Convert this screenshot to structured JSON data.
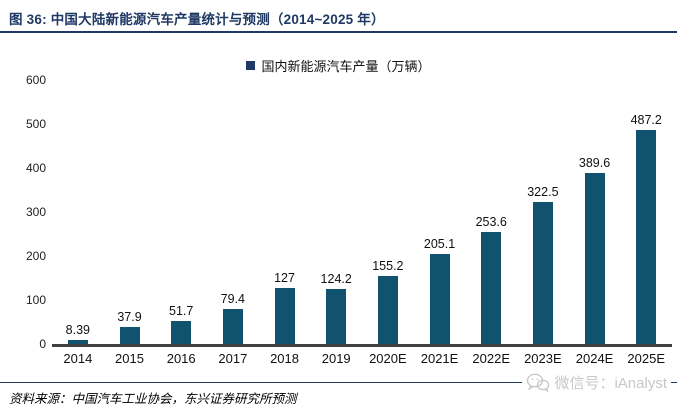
{
  "header": {
    "title": "图 36: 中国大陆新能源汽车产量统计与预测（2014~2025 年）"
  },
  "chart_data": {
    "type": "bar",
    "legend": [
      "国内新能源汽车产量（万辆）"
    ],
    "legend_position": "top",
    "categories": [
      "2014",
      "2015",
      "2016",
      "2017",
      "2018",
      "2019",
      "2020E",
      "2021E",
      "2022E",
      "2023E",
      "2024E",
      "2025E"
    ],
    "values": [
      8.39,
      37.9,
      51.7,
      79.4,
      127,
      124.2,
      155.2,
      205.1,
      253.6,
      322.5,
      389.6,
      487.2
    ],
    "value_labels": [
      "8.39",
      "37.9",
      "51.7",
      "79.4",
      "127",
      "124.2",
      "155.2",
      "205.1",
      "253.6",
      "322.5",
      "389.6",
      "487.2"
    ],
    "ylim": [
      0,
      600
    ],
    "yticks": [
      0,
      100,
      200,
      300,
      400,
      500,
      600
    ],
    "grid": false,
    "bar_color": "#11536F"
  },
  "footer": {
    "source": "资料来源：中国汽车工业协会，东兴证券研究所预测",
    "watermark": "微信号：iAnalyst"
  },
  "colors": {
    "accent_navy": "#1F3864",
    "bar": "#11536F",
    "axis_line": "#3F3F3F",
    "watermark_gray": "#C8C8C8"
  }
}
